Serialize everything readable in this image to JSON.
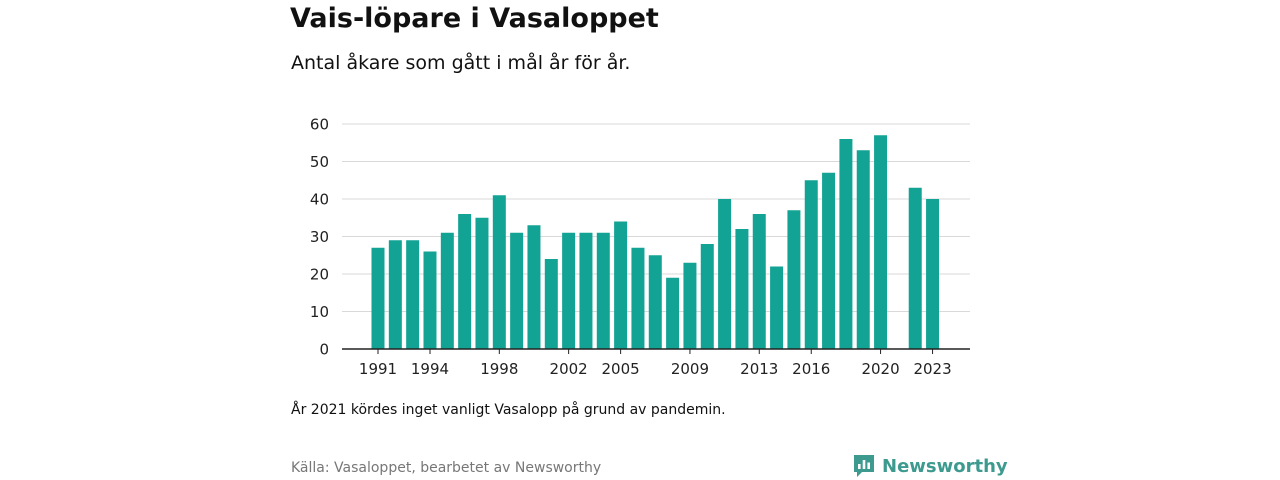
{
  "header": {
    "title": "Vais-löpare i Vasaloppet",
    "subtitle": "Antal åkare som gått i mål år för år."
  },
  "footer": {
    "note": "År 2021 kördes inget vanligt Vasalopp på grund av pandemin.",
    "source": "Källa: Vasaloppet, bearbetet av Newsworthy",
    "brand": "Newsworthy"
  },
  "colors": {
    "bar": "#12a395",
    "brand": "#3d9a8f",
    "grid": "#d9d9d9",
    "axis": "#222222"
  },
  "chart_data": {
    "type": "bar",
    "title": "Vais-löpare i Vasaloppet",
    "subtitle": "Antal åkare som gått i mål år för år.",
    "xlabel": "",
    "ylabel": "",
    "ylim": [
      0,
      60
    ],
    "yticks": [
      0,
      10,
      20,
      30,
      40,
      50,
      60
    ],
    "xtick_labels": [
      "1991",
      "1994",
      "1998",
      "2002",
      "2005",
      "2009",
      "2013",
      "2016",
      "2020",
      "2023"
    ],
    "grid": true,
    "categories": [
      "1991",
      "1992",
      "1993",
      "1994",
      "1995",
      "1996",
      "1997",
      "1998",
      "1999",
      "2000",
      "2001",
      "2002",
      "2003",
      "2004",
      "2005",
      "2006",
      "2007",
      "2008",
      "2009",
      "2010",
      "2011",
      "2012",
      "2013",
      "2014",
      "2015",
      "2016",
      "2017",
      "2018",
      "2019",
      "2020",
      "2021",
      "2022",
      "2023"
    ],
    "values": [
      27,
      29,
      29,
      26,
      31,
      36,
      35,
      41,
      31,
      33,
      24,
      31,
      31,
      31,
      34,
      27,
      25,
      19,
      23,
      28,
      40,
      32,
      36,
      22,
      37,
      45,
      47,
      56,
      53,
      57,
      null,
      43,
      40
    ]
  }
}
